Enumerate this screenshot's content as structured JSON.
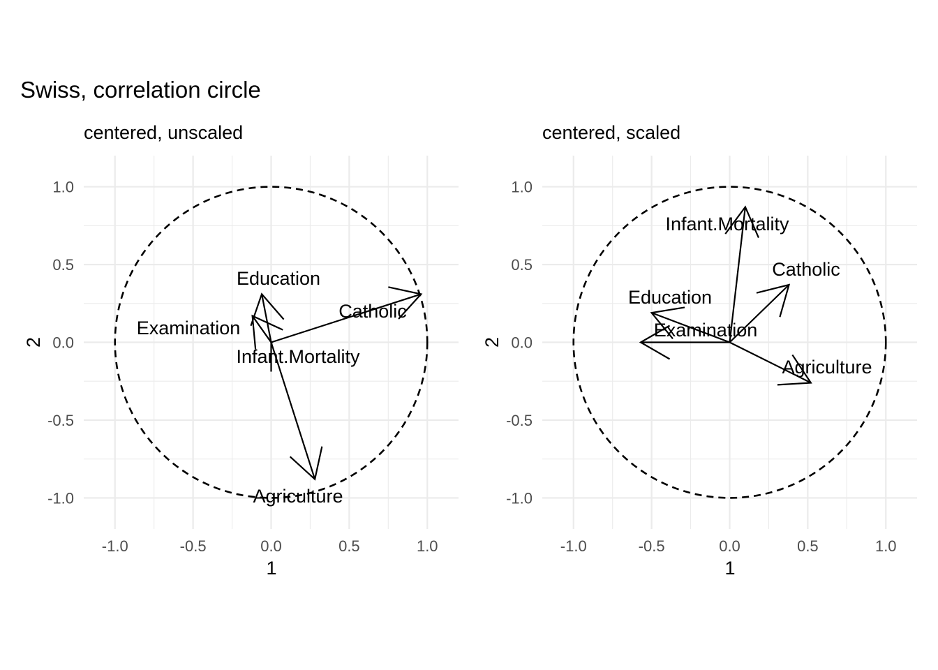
{
  "title": "Swiss, correlation circle",
  "chart_data": [
    {
      "type": "scatter",
      "subtitle": "centered, unscaled",
      "xlabel": "1",
      "ylabel": "2",
      "xlim": [
        -1.2,
        1.2
      ],
      "ylim": [
        -1.2,
        1.2
      ],
      "ticks": [
        "-1.0",
        "-0.5",
        "0.0",
        "0.5",
        "1.0"
      ],
      "grid": true,
      "circle_radius": 1.0,
      "vectors": [
        {
          "name": "Agriculture",
          "x": 0.28,
          "y": -0.88
        },
        {
          "name": "Examination",
          "x": -0.12,
          "y": 0.17
        },
        {
          "name": "Education",
          "x": -0.06,
          "y": 0.31
        },
        {
          "name": "Catholic",
          "x": 0.96,
          "y": 0.31
        },
        {
          "name": "Infant.Mortality",
          "x": 0.01,
          "y": 0.0
        }
      ]
    },
    {
      "type": "scatter",
      "subtitle": "centered, scaled",
      "xlabel": "1",
      "ylabel": "2",
      "xlim": [
        -1.2,
        1.2
      ],
      "ylim": [
        -1.2,
        1.2
      ],
      "ticks": [
        "-1.0",
        "-0.5",
        "0.0",
        "0.5",
        "1.0"
      ],
      "grid": true,
      "circle_radius": 1.0,
      "vectors": [
        {
          "name": "Agriculture",
          "x": 0.52,
          "y": -0.26
        },
        {
          "name": "Examination",
          "x": -0.57,
          "y": 0.0
        },
        {
          "name": "Education",
          "x": -0.5,
          "y": 0.19
        },
        {
          "name": "Catholic",
          "x": 0.38,
          "y": 0.37
        },
        {
          "name": "Infant.Mortality",
          "x": 0.1,
          "y": 0.87
        }
      ]
    }
  ]
}
